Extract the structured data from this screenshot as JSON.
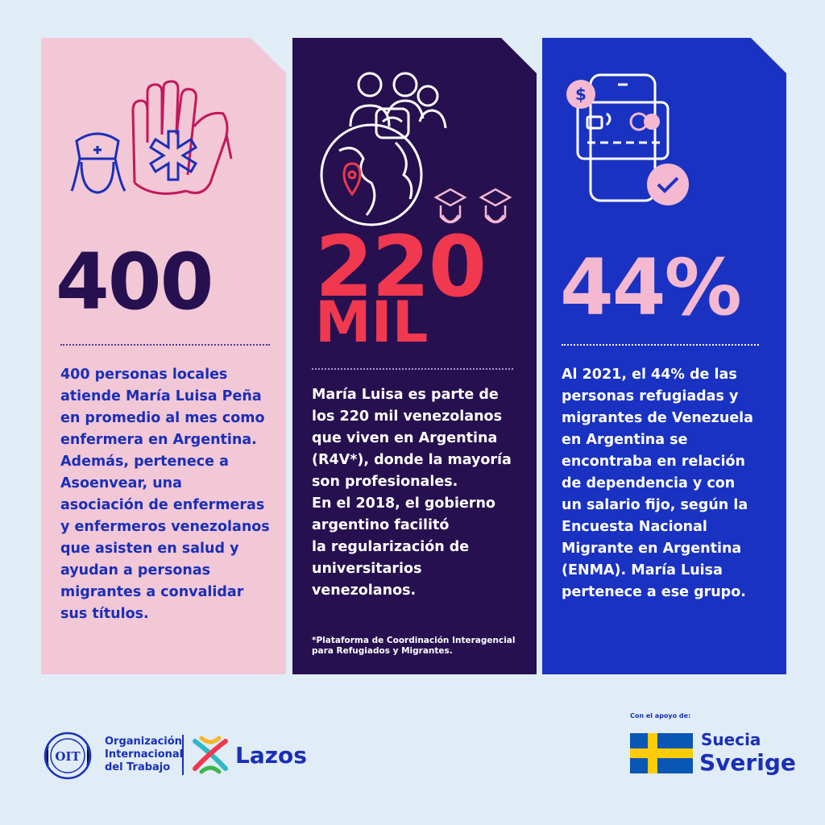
{
  "cards": [
    {
      "stat": "400",
      "text": "400 personas locales\natiende María Luisa Peña\nen promedio al mes como\nenfermera en Argentina.\nAdemás, pertenece a\nAsoenvear, una\nasociación de enfermeras\ny enfermeros venezolanos\nque asisten en salud y\nayudan a personas\nmigrantes a convalidar\nsus títulos."
    },
    {
      "stat_line1": "220",
      "stat_line2": "MIL",
      "text": "María Luisa es parte de\nlos 220 mil venezolanos\nque viven en Argentina\n(R4V*), donde la mayoría\nson profesionales.\nEn el 2018, el gobierno\nargentino facilitó\nla regularización de\nuniversitarios\nvenezolanos.",
      "footnote": "*Plataforma de Coordinación Interagencial\npara Refugiados y Migrantes."
    },
    {
      "stat": "44%",
      "text": "Al 2021, el 44% de las\npersonas refugiadas y\nmigrantes de Venezuela\nen Argentina se\nencontraba en relación\nde dependencia y con\nun salario fijo, según la\nEncuesta Nacional\nMigrante en Argentina\n(ENMA). María Luisa\npertenece a ese grupo."
    }
  ],
  "logos": {
    "oit_seal": "OIT",
    "oit_line1": "Organización",
    "oit_line2": "Internacional",
    "oit_line3": "del Trabajo",
    "lazos": "Lazos",
    "support_label": "Con el apoyo de:",
    "suecia": "Suecia",
    "sverige": "Sverige"
  },
  "colors": {
    "pink_card": "#f2c7d6",
    "purple_card": "#261050",
    "blue_card": "#1a32c2",
    "accent_red": "#f0384e",
    "accent_pink": "#f4b8d1",
    "text_blue": "#1a2fb8"
  },
  "icons": [
    "nurse-icon",
    "hands-medical-icon",
    "globe-people-icon",
    "location-pin-icon",
    "graduate-icon",
    "phone-payment-icon",
    "dollar-icon",
    "card-icon",
    "check-icon"
  ]
}
